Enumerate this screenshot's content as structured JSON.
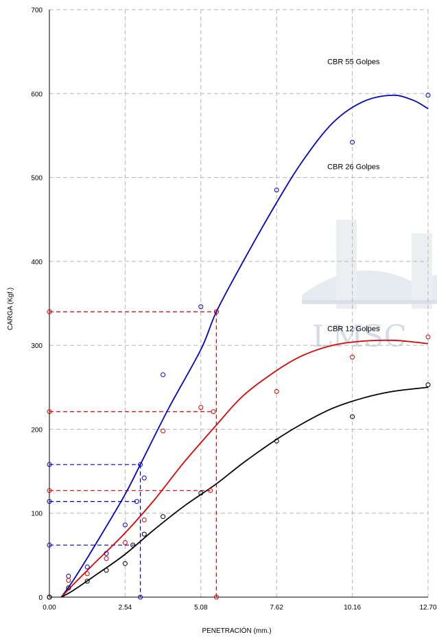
{
  "chart_data": {
    "type": "scatter",
    "title": "",
    "xlabel": "PENETRACIÓN (mm.)",
    "ylabel": "CARGA   (Kgf.)",
    "xlim": [
      0,
      12.7
    ],
    "ylim": [
      0,
      700
    ],
    "x_ticks": [
      "0.00",
      "2.54",
      "5.08",
      "7.62",
      "10.16",
      "12.70"
    ],
    "x_tick_values": [
      0,
      2.54,
      5.08,
      7.62,
      10.16,
      12.7
    ],
    "y_ticks": [
      "0",
      "100",
      "200",
      "300",
      "400",
      "500",
      "600",
      "700"
    ],
    "y_tick_values": [
      0,
      100,
      200,
      300,
      400,
      500,
      600,
      700
    ],
    "grid": true,
    "annotations": [
      {
        "text": "CBR 55 Golpes",
        "x": 10.2,
        "y": 635
      },
      {
        "text": "CBR 26 Golpes",
        "x": 10.2,
        "y": 510
      },
      {
        "text": "CBR 12 Golpes",
        "x": 10.2,
        "y": 317
      }
    ],
    "series": [
      {
        "color": "#0000cc",
        "points": [
          [
            0,
            0
          ],
          [
            0.64,
            25
          ],
          [
            1.27,
            36
          ],
          [
            1.91,
            52
          ],
          [
            2.54,
            86
          ],
          [
            2.93,
            114
          ],
          [
            3.05,
            158
          ],
          [
            3.18,
            142
          ],
          [
            3.81,
            265
          ],
          [
            5.08,
            346
          ],
          [
            5.6,
            340
          ],
          [
            7.62,
            485
          ],
          [
            10.16,
            542
          ],
          [
            12.7,
            598
          ]
        ],
        "curve": [
          [
            0.4,
            0
          ],
          [
            0.8,
            20
          ],
          [
            1.5,
            60
          ],
          [
            2.5,
            120
          ],
          [
            3.05,
            158
          ],
          [
            4,
            225
          ],
          [
            5.08,
            295
          ],
          [
            5.6,
            340
          ],
          [
            6.5,
            400
          ],
          [
            7.62,
            470
          ],
          [
            8.5,
            520
          ],
          [
            9.5,
            565
          ],
          [
            10.5,
            590
          ],
          [
            11.5,
            598
          ],
          [
            12.2,
            592
          ],
          [
            12.7,
            582
          ]
        ],
        "ref_lines": [
          {
            "x": 3.05,
            "y": 158
          },
          {
            "y": 114,
            "x_end": 2.93
          },
          {
            "y": 62,
            "x_end": 2.93
          }
        ]
      },
      {
        "color": "#e00000",
        "points": [
          [
            0,
            0
          ],
          [
            0.64,
            20
          ],
          [
            1.27,
            28
          ],
          [
            1.91,
            46
          ],
          [
            2.54,
            65
          ],
          [
            3.18,
            92
          ],
          [
            3.81,
            198
          ],
          [
            5.08,
            226
          ],
          [
            5.4,
            127
          ],
          [
            5.5,
            221
          ],
          [
            5.6,
            340
          ],
          [
            7.62,
            245
          ],
          [
            10.16,
            286
          ],
          [
            12.7,
            310
          ]
        ],
        "curve": [
          [
            0.4,
            0
          ],
          [
            0.8,
            15
          ],
          [
            1.5,
            40
          ],
          [
            2.5,
            75
          ],
          [
            3.5,
            115
          ],
          [
            4.5,
            160
          ],
          [
            5.6,
            205
          ],
          [
            6.5,
            240
          ],
          [
            7.62,
            270
          ],
          [
            8.5,
            288
          ],
          [
            9.5,
            300
          ],
          [
            10.5,
            305
          ],
          [
            11.5,
            306
          ],
          [
            12.2,
            304
          ],
          [
            12.7,
            302
          ]
        ],
        "ref_lines": [
          {
            "x": 5.6,
            "y": 340
          },
          {
            "y": 221,
            "x_end": 5.5
          },
          {
            "y": 127,
            "x_end": 5.4
          }
        ]
      },
      {
        "color": "#000000",
        "points": [
          [
            0,
            0
          ],
          [
            0.64,
            11
          ],
          [
            1.27,
            19
          ],
          [
            1.91,
            32
          ],
          [
            2.54,
            40
          ],
          [
            2.8,
            62
          ],
          [
            3.18,
            75
          ],
          [
            3.81,
            96
          ],
          [
            5.08,
            124
          ],
          [
            7.62,
            186
          ],
          [
            10.16,
            215
          ],
          [
            12.7,
            253
          ]
        ],
        "curve": [
          [
            0.4,
            0
          ],
          [
            0.8,
            8
          ],
          [
            1.5,
            25
          ],
          [
            2.5,
            50
          ],
          [
            3.5,
            80
          ],
          [
            4.5,
            108
          ],
          [
            5.6,
            135
          ],
          [
            6.5,
            160
          ],
          [
            7.62,
            188
          ],
          [
            8.5,
            207
          ],
          [
            9.5,
            225
          ],
          [
            10.5,
            237
          ],
          [
            11.5,
            245
          ],
          [
            12.7,
            250
          ]
        ]
      }
    ]
  }
}
